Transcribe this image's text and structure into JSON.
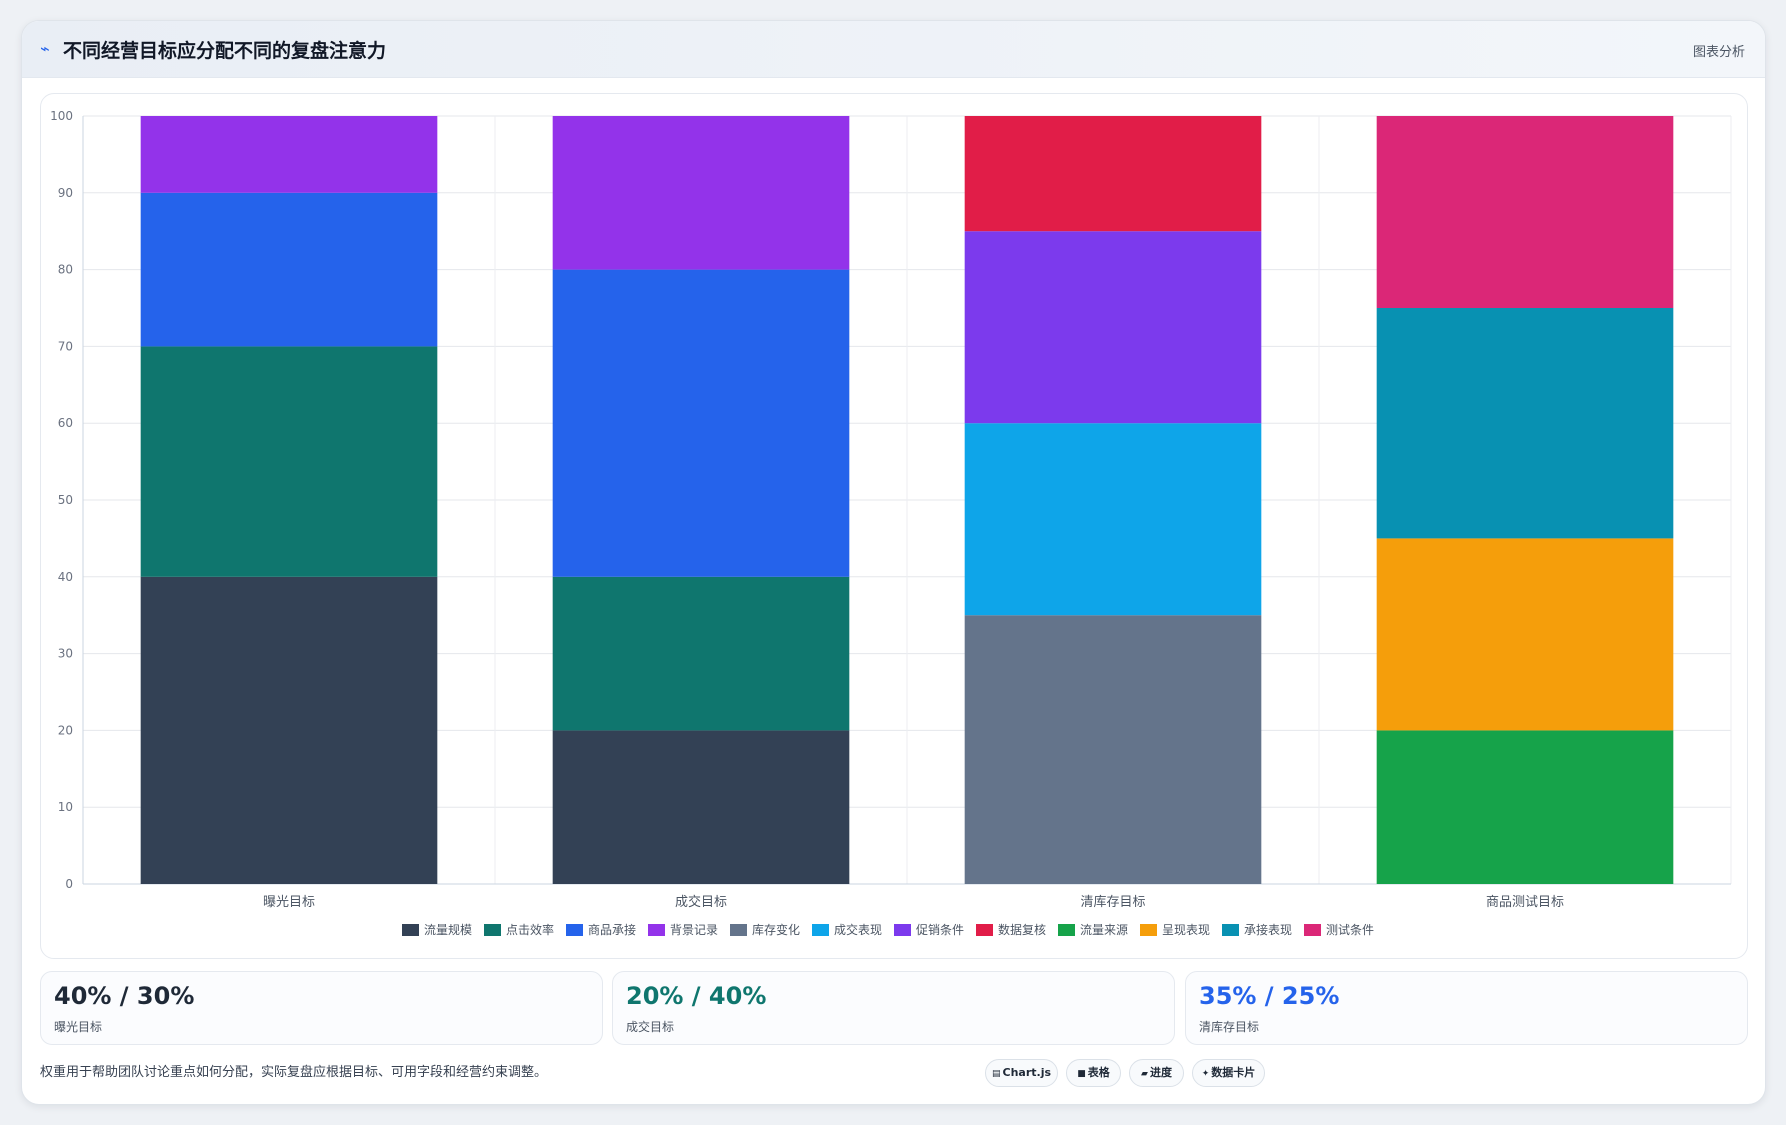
{
  "header": {
    "icon": "trend-icon",
    "title": "不同经营目标应分配不同的复盘注意力",
    "tag": "图表分析"
  },
  "chart_data": {
    "type": "bar",
    "stacked": true,
    "categories": [
      "曝光目标",
      "成交目标",
      "清库存目标",
      "商品测试目标"
    ],
    "ylim": [
      0,
      100
    ],
    "yticks": [
      0,
      10,
      20,
      30,
      40,
      50,
      60,
      70,
      80,
      90,
      100
    ],
    "grid": true,
    "legend_position": "bottom",
    "series": [
      {
        "name": "流量规模",
        "color": "#334155",
        "values": [
          40,
          20,
          0,
          0
        ]
      },
      {
        "name": "点击效率",
        "color": "#0f766e",
        "values": [
          30,
          20,
          0,
          0
        ]
      },
      {
        "name": "商品承接",
        "color": "#2563eb",
        "values": [
          20,
          40,
          0,
          0
        ]
      },
      {
        "name": "背景记录",
        "color": "#9333ea",
        "values": [
          10,
          20,
          0,
          0
        ]
      },
      {
        "name": "库存变化",
        "color": "#64748b",
        "values": [
          0,
          0,
          35,
          0
        ]
      },
      {
        "name": "成交表现",
        "color": "#0ea5e9",
        "values": [
          0,
          0,
          25,
          0
        ]
      },
      {
        "name": "促销条件",
        "color": "#7c3aed",
        "values": [
          0,
          0,
          25,
          0
        ]
      },
      {
        "name": "数据复核",
        "color": "#e11d48",
        "values": [
          0,
          0,
          15,
          0
        ]
      },
      {
        "name": "流量来源",
        "color": "#16a34a",
        "values": [
          0,
          0,
          0,
          20
        ]
      },
      {
        "name": "呈现表现",
        "color": "#f59e0b",
        "values": [
          0,
          0,
          0,
          25
        ]
      },
      {
        "name": "承接表现",
        "color": "#0891b2",
        "values": [
          0,
          0,
          0,
          30
        ]
      },
      {
        "name": "测试条件",
        "color": "#db2777",
        "values": [
          0,
          0,
          0,
          25
        ]
      }
    ]
  },
  "stats": [
    {
      "value": "40% / 30%",
      "label": "曝光目标",
      "color": "#1f2937"
    },
    {
      "value": "20% / 40%",
      "label": "成交目标",
      "color": "#0f766e"
    },
    {
      "value": "35% / 25%",
      "label": "清库存目标",
      "color": "#2563eb"
    }
  ],
  "footnote": "权重用于帮助团队讨论重点如何分配，实际复盘应根据目标、可用字段和经营约束调整。",
  "pills": [
    {
      "icon": "chart-icon",
      "glyph": "▤",
      "label": "Chart.js"
    },
    {
      "icon": "table-icon",
      "glyph": "■",
      "label": "表格"
    },
    {
      "icon": "progress-icon",
      "glyph": "▰",
      "label": "进度"
    },
    {
      "icon": "card-icon",
      "glyph": "✦",
      "label": "数据卡片"
    }
  ]
}
